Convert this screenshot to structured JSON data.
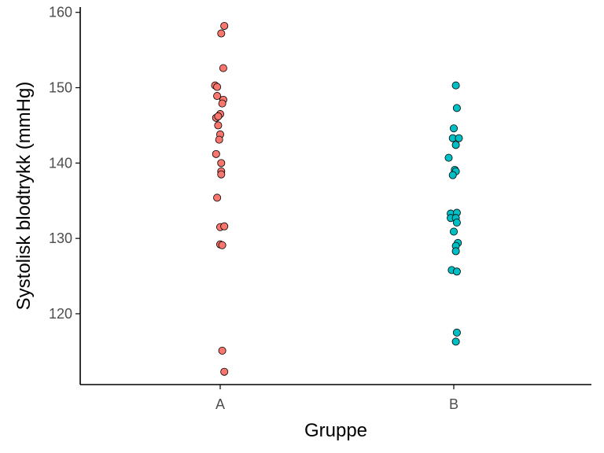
{
  "chart_data": {
    "type": "scatter",
    "title": "",
    "xlabel": "Gruppe",
    "ylabel": "Systolisk blodtrykk (mmHg)",
    "categories": [
      "A",
      "B"
    ],
    "yticks": [
      120,
      130,
      140,
      150,
      160
    ],
    "ylim": [
      110.6,
      160.7
    ],
    "grid": false,
    "legend": "none",
    "series": [
      {
        "name": "A",
        "color": "#F8766D",
        "points": [
          {
            "x": 0.04,
            "y": 158.2
          },
          {
            "x": 0.01,
            "y": 157.2
          },
          {
            "x": 0.03,
            "y": 152.6
          },
          {
            "x": -0.05,
            "y": 150.3
          },
          {
            "x": -0.03,
            "y": 150.1
          },
          {
            "x": 0.03,
            "y": 148.4
          },
          {
            "x": 0.02,
            "y": 147.9
          },
          {
            "x": -0.03,
            "y": 148.9
          },
          {
            "x": 0.0,
            "y": 146.5
          },
          {
            "x": -0.04,
            "y": 146.0
          },
          {
            "x": -0.02,
            "y": 146.2
          },
          {
            "x": -0.02,
            "y": 145.0
          },
          {
            "x": 0.0,
            "y": 143.8
          },
          {
            "x": -0.01,
            "y": 143.1
          },
          {
            "x": -0.04,
            "y": 141.2
          },
          {
            "x": 0.01,
            "y": 140.0
          },
          {
            "x": 0.01,
            "y": 138.9
          },
          {
            "x": 0.01,
            "y": 138.5
          },
          {
            "x": -0.03,
            "y": 135.4
          },
          {
            "x": 0.0,
            "y": 131.5
          },
          {
            "x": 0.04,
            "y": 131.6
          },
          {
            "x": 0.0,
            "y": 129.2
          },
          {
            "x": 0.02,
            "y": 129.1
          },
          {
            "x": 0.02,
            "y": 115.1
          },
          {
            "x": 0.04,
            "y": 112.3
          }
        ]
      },
      {
        "name": "B",
        "color": "#00BFC4",
        "points": [
          {
            "x": 0.02,
            "y": 150.3
          },
          {
            "x": 0.03,
            "y": 147.3
          },
          {
            "x": 0.0,
            "y": 144.6
          },
          {
            "x": -0.01,
            "y": 143.3
          },
          {
            "x": 0.05,
            "y": 143.3
          },
          {
            "x": 0.02,
            "y": 142.4
          },
          {
            "x": -0.05,
            "y": 140.7
          },
          {
            "x": 0.01,
            "y": 139.1
          },
          {
            "x": 0.02,
            "y": 138.9
          },
          {
            "x": -0.01,
            "y": 138.4
          },
          {
            "x": -0.03,
            "y": 133.3
          },
          {
            "x": 0.03,
            "y": 133.4
          },
          {
            "x": -0.03,
            "y": 132.7
          },
          {
            "x": 0.02,
            "y": 132.7
          },
          {
            "x": 0.03,
            "y": 132.1
          },
          {
            "x": 0.0,
            "y": 130.9
          },
          {
            "x": 0.04,
            "y": 129.4
          },
          {
            "x": 0.02,
            "y": 129.0
          },
          {
            "x": 0.02,
            "y": 128.3
          },
          {
            "x": -0.02,
            "y": 125.8
          },
          {
            "x": 0.03,
            "y": 125.6
          },
          {
            "x": 0.03,
            "y": 117.5
          },
          {
            "x": 0.02,
            "y": 116.3
          }
        ]
      }
    ]
  }
}
